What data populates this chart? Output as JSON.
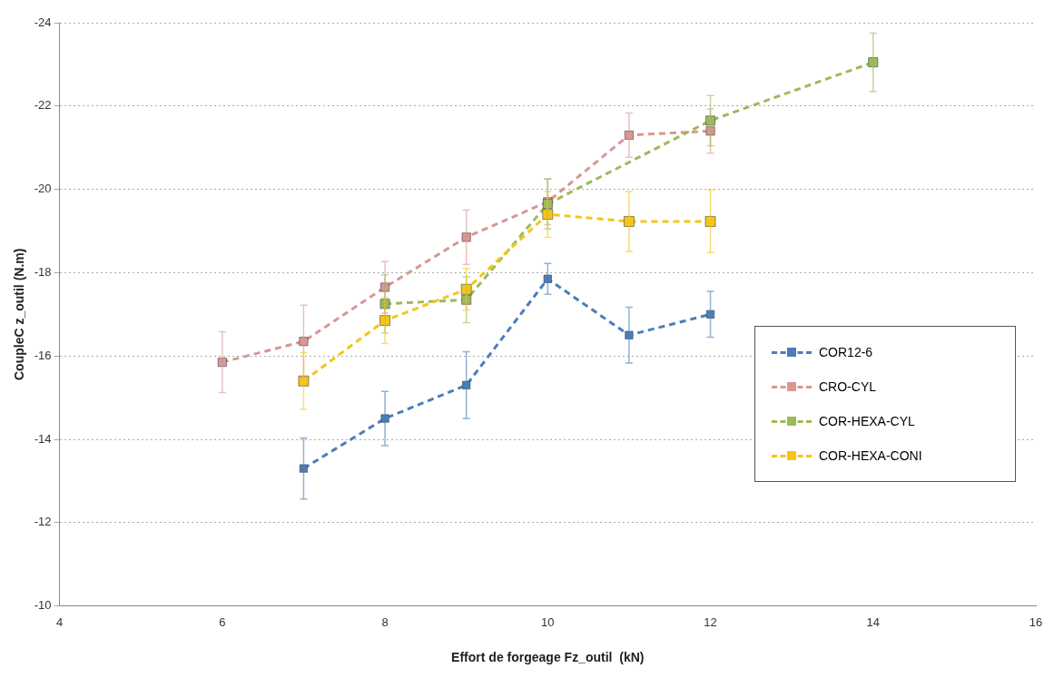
{
  "chart_data": {
    "type": "line",
    "xlabel": "Effort de forgeage Fz_outil  (kN)",
    "ylabel": "CoupleC z_outil (N.m)",
    "xlim": [
      4,
      16
    ],
    "xticks": [
      4,
      6,
      8,
      10,
      12,
      14,
      16
    ],
    "ylim": [
      -10,
      -24
    ],
    "yticks": [
      -10,
      -12,
      -14,
      -16,
      -18,
      -20,
      -22,
      -24
    ],
    "grid": "y",
    "legend": "right",
    "marker": "square",
    "line_style": "dashed",
    "series": [
      {
        "name": "COR12-6",
        "color": "#4a7ebb",
        "x": [
          7,
          8,
          9,
          10,
          11,
          12
        ],
        "values": [
          -13.3,
          -14.5,
          -15.3,
          -17.85,
          -16.5,
          -17.0
        ],
        "errors": [
          0.73,
          0.65,
          0.8,
          0.37,
          0.67,
          0.55
        ]
      },
      {
        "name": "CRO-CYL",
        "color": "#d99694",
        "x": [
          6,
          7,
          8,
          9,
          10,
          11,
          12
        ],
        "values": [
          -15.85,
          -16.35,
          -17.65,
          -18.85,
          -19.7,
          -21.3,
          -21.4
        ],
        "errors": [
          0.73,
          0.87,
          0.62,
          0.65,
          0.55,
          0.53,
          0.53
        ]
      },
      {
        "name": "COR-HEXA-CYL",
        "color": "#9bbb59",
        "x": [
          8,
          9,
          10,
          12,
          14
        ],
        "values": [
          -17.25,
          -17.35,
          -19.65,
          -21.65,
          -23.05
        ],
        "errors": [
          0.7,
          0.55,
          0.6,
          0.6,
          0.7
        ]
      },
      {
        "name": "COR-HEXA-CONI",
        "color": "#f5c518",
        "x": [
          7,
          8,
          9,
          10,
          11,
          12
        ],
        "values": [
          -15.4,
          -16.85,
          -17.6,
          -19.4,
          -19.23,
          -19.23
        ],
        "errors": [
          0.68,
          0.55,
          0.5,
          0.55,
          0.72,
          0.75
        ]
      }
    ]
  }
}
